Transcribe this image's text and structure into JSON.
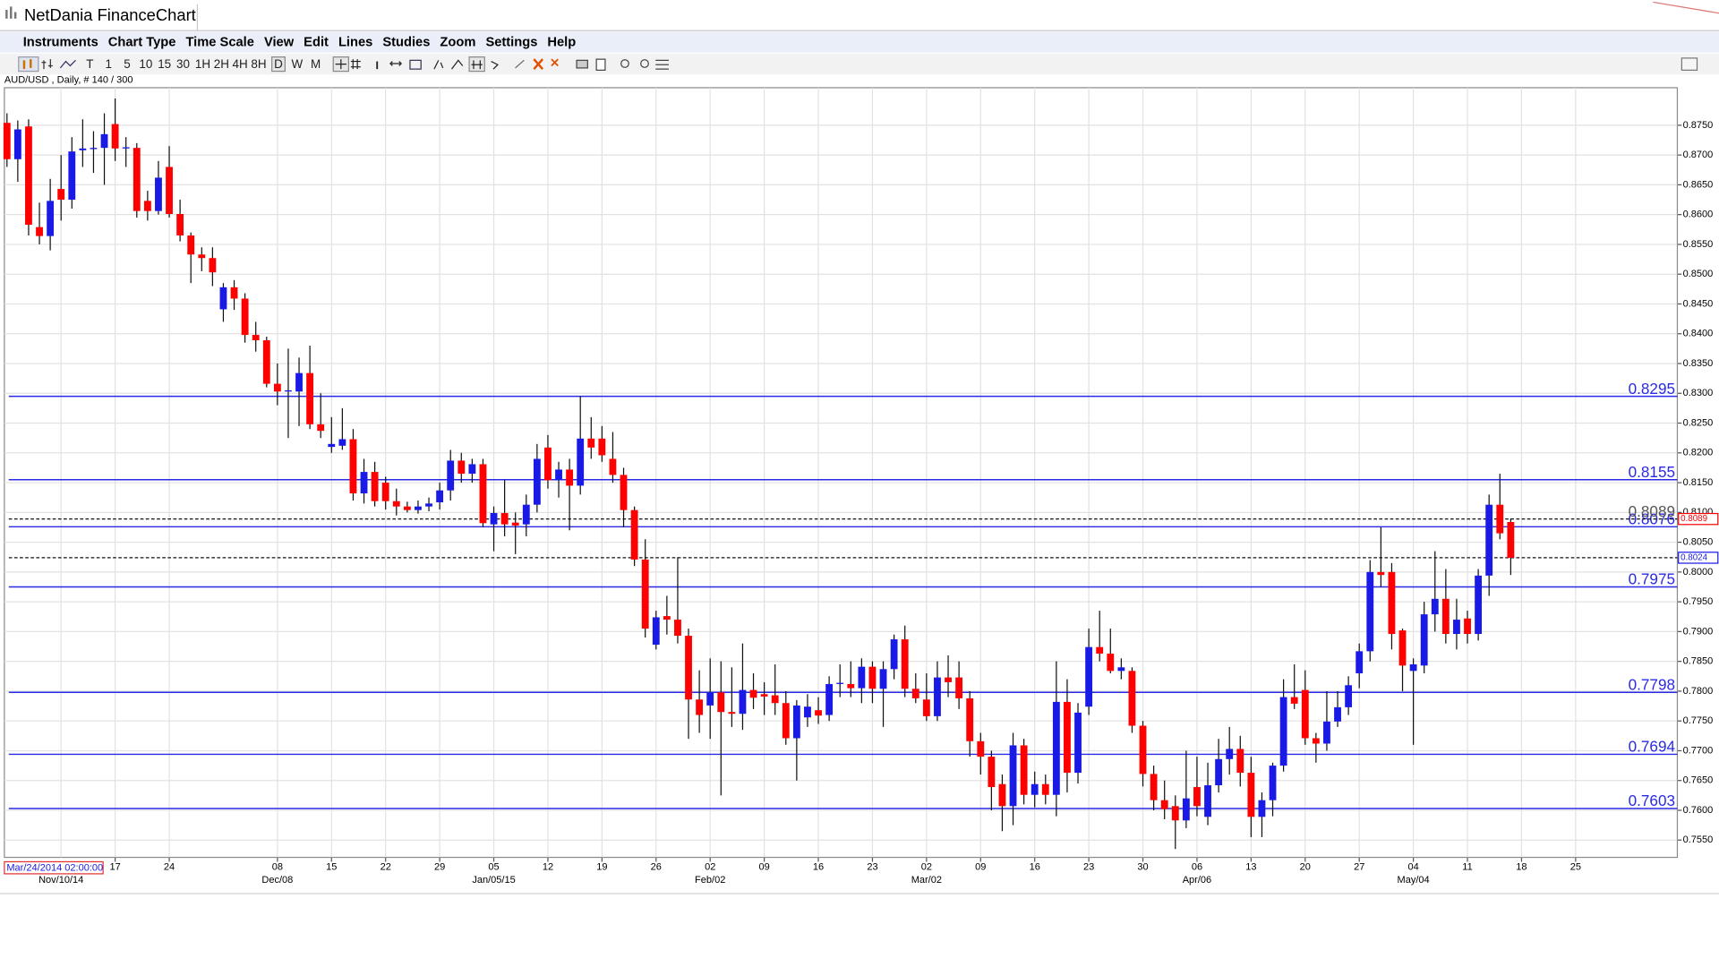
{
  "window": {
    "title": "NetDania FinanceChart"
  },
  "menu": [
    "Instruments",
    "Chart Type",
    "Time Scale",
    "View",
    "Edit",
    "Lines",
    "Studies",
    "Zoom",
    "Settings",
    "Help"
  ],
  "toolbar": [
    "T",
    "1",
    "5",
    "10",
    "15",
    "30",
    "1H",
    "2H",
    "4H",
    "8H",
    "D",
    "W",
    "M"
  ],
  "chart_data": {
    "type": "candlestick",
    "subtitle": "AUD/USD , Daily, # 140 / 300",
    "cursor_date": "Mar/24/2014 02:00:00",
    "x_weeks": [
      null,
      "17",
      "24",
      null,
      "08",
      "15",
      "22",
      "29",
      "05",
      "12",
      "19",
      "26",
      "02",
      "09",
      "16",
      "23",
      "02",
      "09",
      "16",
      "23",
      "30",
      "06",
      "13",
      "20",
      "27",
      "04",
      "11",
      "18",
      "25"
    ],
    "x_months": [
      "Nov/10/14",
      null,
      null,
      null,
      "Dec/08",
      null,
      null,
      null,
      "Jan/05/15",
      null,
      null,
      null,
      "Feb/02",
      null,
      null,
      null,
      "Mar/02",
      null,
      null,
      null,
      null,
      "Apr/06",
      null,
      null,
      null,
      "May/04",
      null,
      null,
      null
    ],
    "up_color": "#1a1ae6",
    "down_color": "#ff0000",
    "ohlc": [
      [
        0.8754,
        0.877,
        0.868,
        0.8693
      ],
      [
        0.8693,
        0.8758,
        0.8655,
        0.8743
      ],
      [
        0.8748,
        0.876,
        0.8565,
        0.8583
      ],
      [
        0.8579,
        0.862,
        0.855,
        0.8564
      ],
      [
        0.8564,
        0.866,
        0.854,
        0.8623
      ],
      [
        0.8643,
        0.87,
        0.859,
        0.8625
      ],
      [
        0.8625,
        0.873,
        0.861,
        0.8706
      ],
      [
        0.8708,
        0.876,
        0.868,
        0.8711
      ],
      [
        0.871,
        0.874,
        0.867,
        0.8712
      ],
      [
        0.8712,
        0.877,
        0.865,
        0.8735
      ],
      [
        0.8752,
        0.8795,
        0.869,
        0.8711
      ],
      [
        0.8711,
        0.873,
        0.868,
        0.8713
      ],
      [
        0.8712,
        0.872,
        0.8595,
        0.8606
      ],
      [
        0.8623,
        0.864,
        0.859,
        0.8606
      ],
      [
        0.8606,
        0.869,
        0.86,
        0.8662
      ],
      [
        0.868,
        0.8715,
        0.8595,
        0.8601
      ],
      [
        0.8601,
        0.8625,
        0.8555,
        0.8565
      ],
      [
        0.8565,
        0.857,
        0.8485,
        0.8533
      ],
      [
        0.8533,
        0.8545,
        0.8505,
        0.8527
      ],
      [
        0.8527,
        0.8545,
        0.848,
        0.8503
      ],
      [
        0.8441,
        0.8485,
        0.842,
        0.8478
      ],
      [
        0.8478,
        0.849,
        0.844,
        0.8459
      ],
      [
        0.8459,
        0.8468,
        0.8385,
        0.8398
      ],
      [
        0.8398,
        0.842,
        0.837,
        0.8389
      ],
      [
        0.8389,
        0.8395,
        0.831,
        0.8316
      ],
      [
        0.8316,
        0.835,
        0.828,
        0.8303
      ],
      [
        0.8303,
        0.8375,
        0.8225,
        0.8305
      ],
      [
        0.8303,
        0.836,
        0.8245,
        0.8334
      ],
      [
        0.8334,
        0.838,
        0.824,
        0.8248
      ],
      [
        0.8248,
        0.83,
        0.8225,
        0.8237
      ],
      [
        0.821,
        0.826,
        0.82,
        0.8215
      ],
      [
        0.8212,
        0.8275,
        0.8205,
        0.8223
      ],
      [
        0.8223,
        0.824,
        0.812,
        0.8132
      ],
      [
        0.8132,
        0.819,
        0.8115,
        0.8168
      ],
      [
        0.8168,
        0.8185,
        0.811,
        0.8119
      ],
      [
        0.815,
        0.816,
        0.8105,
        0.8119
      ],
      [
        0.8119,
        0.814,
        0.8095,
        0.811
      ],
      [
        0.811,
        0.8118,
        0.81,
        0.8104
      ],
      [
        0.8104,
        0.812,
        0.8098,
        0.811
      ],
      [
        0.811,
        0.8125,
        0.8102,
        0.8115
      ],
      [
        0.8117,
        0.815,
        0.8105,
        0.8137
      ],
      [
        0.8137,
        0.8205,
        0.812,
        0.8187
      ],
      [
        0.8187,
        0.82,
        0.815,
        0.8165
      ],
      [
        0.8165,
        0.819,
        0.815,
        0.8181
      ],
      [
        0.8181,
        0.819,
        0.8075,
        0.8082
      ],
      [
        0.808,
        0.811,
        0.8035,
        0.8099
      ],
      [
        0.8099,
        0.8155,
        0.806,
        0.808
      ],
      [
        0.8083,
        0.81,
        0.803,
        0.8078
      ],
      [
        0.808,
        0.813,
        0.806,
        0.8113
      ],
      [
        0.8113,
        0.8215,
        0.81,
        0.819
      ],
      [
        0.8209,
        0.823,
        0.814,
        0.8154
      ],
      [
        0.8154,
        0.8185,
        0.8125,
        0.8172
      ],
      [
        0.8172,
        0.819,
        0.807,
        0.8145
      ],
      [
        0.8145,
        0.8295,
        0.813,
        0.8224
      ],
      [
        0.8224,
        0.826,
        0.819,
        0.8209
      ],
      [
        0.8224,
        0.8245,
        0.8185,
        0.8196
      ],
      [
        0.819,
        0.8235,
        0.815,
        0.8163
      ],
      [
        0.8163,
        0.8175,
        0.8075,
        0.8104
      ],
      [
        0.8104,
        0.811,
        0.801,
        0.8021
      ],
      [
        0.8021,
        0.8055,
        0.789,
        0.7905
      ],
      [
        0.7878,
        0.7935,
        0.787,
        0.7924
      ],
      [
        0.7926,
        0.796,
        0.7895,
        0.792
      ],
      [
        0.792,
        0.8025,
        0.788,
        0.7893
      ],
      [
        0.7893,
        0.7905,
        0.772,
        0.7786
      ],
      [
        0.7786,
        0.7835,
        0.773,
        0.776
      ],
      [
        0.7776,
        0.7855,
        0.772,
        0.7798
      ],
      [
        0.7798,
        0.785,
        0.7625,
        0.7765
      ],
      [
        0.7765,
        0.784,
        0.774,
        0.7762
      ],
      [
        0.7762,
        0.788,
        0.7735,
        0.7802
      ],
      [
        0.7802,
        0.783,
        0.777,
        0.7789
      ],
      [
        0.7795,
        0.7815,
        0.776,
        0.7791
      ],
      [
        0.7793,
        0.7845,
        0.776,
        0.778
      ],
      [
        0.778,
        0.78,
        0.771,
        0.7721
      ],
      [
        0.7721,
        0.7785,
        0.765,
        0.7776
      ],
      [
        0.7756,
        0.7795,
        0.774,
        0.7774
      ],
      [
        0.7768,
        0.779,
        0.7745,
        0.7759
      ],
      [
        0.776,
        0.7825,
        0.775,
        0.7812
      ],
      [
        0.7812,
        0.7845,
        0.779,
        0.7814
      ],
      [
        0.7812,
        0.785,
        0.779,
        0.7805
      ],
      [
        0.7805,
        0.7855,
        0.778,
        0.7841
      ],
      [
        0.7841,
        0.785,
        0.778,
        0.7804
      ],
      [
        0.7804,
        0.785,
        0.774,
        0.7837
      ],
      [
        0.7837,
        0.7895,
        0.782,
        0.7887
      ],
      [
        0.7887,
        0.791,
        0.779,
        0.7804
      ],
      [
        0.7804,
        0.783,
        0.778,
        0.7788
      ],
      [
        0.7786,
        0.783,
        0.775,
        0.7758
      ],
      [
        0.7758,
        0.785,
        0.775,
        0.7823
      ],
      [
        0.7823,
        0.786,
        0.779,
        0.7815
      ],
      [
        0.7823,
        0.785,
        0.777,
        0.7788
      ],
      [
        0.7788,
        0.78,
        0.769,
        0.7716
      ],
      [
        0.7716,
        0.773,
        0.766,
        0.769
      ],
      [
        0.769,
        0.77,
        0.76,
        0.7639
      ],
      [
        0.7644,
        0.766,
        0.7565,
        0.7607
      ],
      [
        0.7607,
        0.773,
        0.7575,
        0.7709
      ],
      [
        0.7709,
        0.772,
        0.761,
        0.7626
      ],
      [
        0.7626,
        0.7665,
        0.7605,
        0.7644
      ],
      [
        0.7644,
        0.766,
        0.761,
        0.7626
      ],
      [
        0.7626,
        0.785,
        0.759,
        0.7782
      ],
      [
        0.7782,
        0.782,
        0.763,
        0.7663
      ],
      [
        0.7663,
        0.778,
        0.7645,
        0.7764
      ],
      [
        0.7774,
        0.7905,
        0.776,
        0.7874
      ],
      [
        0.7874,
        0.7935,
        0.785,
        0.7863
      ],
      [
        0.7863,
        0.7905,
        0.783,
        0.7834
      ],
      [
        0.7834,
        0.7855,
        0.782,
        0.784
      ],
      [
        0.7834,
        0.784,
        0.773,
        0.7742
      ],
      [
        0.7742,
        0.775,
        0.764,
        0.7661
      ],
      [
        0.7661,
        0.7675,
        0.76,
        0.7617
      ],
      [
        0.7617,
        0.765,
        0.7585,
        0.7602
      ],
      [
        0.7607,
        0.7625,
        0.7535,
        0.7583
      ],
      [
        0.7583,
        0.77,
        0.757,
        0.762
      ],
      [
        0.7639,
        0.769,
        0.759,
        0.7607
      ],
      [
        0.7589,
        0.768,
        0.7575,
        0.7642
      ],
      [
        0.7642,
        0.772,
        0.763,
        0.7686
      ],
      [
        0.7686,
        0.774,
        0.766,
        0.7703
      ],
      [
        0.7703,
        0.7725,
        0.764,
        0.7663
      ],
      [
        0.7663,
        0.769,
        0.7555,
        0.7589
      ],
      [
        0.7589,
        0.763,
        0.7555,
        0.7617
      ],
      [
        0.7617,
        0.768,
        0.759,
        0.7675
      ],
      [
        0.7675,
        0.782,
        0.7665,
        0.779
      ],
      [
        0.779,
        0.7845,
        0.777,
        0.7779
      ],
      [
        0.7802,
        0.7835,
        0.771,
        0.7721
      ],
      [
        0.7721,
        0.773,
        0.768,
        0.7712
      ],
      [
        0.7712,
        0.78,
        0.77,
        0.7749
      ],
      [
        0.7749,
        0.78,
        0.774,
        0.7773
      ],
      [
        0.7773,
        0.7825,
        0.776,
        0.781
      ],
      [
        0.783,
        0.788,
        0.7805,
        0.7867
      ],
      [
        0.7867,
        0.802,
        0.785,
        0.8
      ],
      [
        0.8,
        0.8075,
        0.7975,
        0.7995
      ],
      [
        0.8,
        0.8015,
        0.787,
        0.7896
      ],
      [
        0.7902,
        0.7905,
        0.78,
        0.7843
      ],
      [
        0.7834,
        0.7855,
        0.771,
        0.7845
      ],
      [
        0.7843,
        0.795,
        0.783,
        0.7929
      ],
      [
        0.7929,
        0.8035,
        0.79,
        0.7955
      ],
      [
        0.7955,
        0.8005,
        0.788,
        0.7896
      ],
      [
        0.7896,
        0.7955,
        0.787,
        0.792
      ],
      [
        0.7922,
        0.7935,
        0.788,
        0.7896
      ],
      [
        0.7896,
        0.8005,
        0.7885,
        0.7994
      ],
      [
        0.7994,
        0.813,
        0.796,
        0.8113
      ],
      [
        0.8113,
        0.8165,
        0.8055,
        0.8065
      ],
      [
        0.8084,
        0.809,
        0.7995,
        0.8024
      ]
    ],
    "levels": [
      0.8295,
      0.8155,
      0.8076,
      0.7975,
      0.7798,
      0.7694,
      0.7603
    ],
    "level_color": "#2a2ae6",
    "price_lines": [
      {
        "value": 0.8089,
        "color": "#ff0000"
      },
      {
        "value": 0.8024,
        "color": "#1a1ae6"
      }
    ],
    "ylim": [
      0.7521,
      0.8813
    ],
    "yticks": [
      {
        "value": 0.755,
        "label": "0.7550"
      },
      {
        "value": 0.76,
        "label": "0.7600"
      },
      {
        "value": 0.765,
        "label": "0.7650"
      },
      {
        "value": 0.77,
        "label": "0.7700"
      },
      {
        "value": 0.775,
        "label": "0.7750"
      },
      {
        "value": 0.78,
        "label": "0.7800"
      },
      {
        "value": 0.785,
        "label": "0.7850"
      },
      {
        "value": 0.79,
        "label": "0.7900"
      },
      {
        "value": 0.795,
        "label": "0.7950"
      },
      {
        "value": 0.8,
        "label": "0.8000"
      },
      {
        "value": 0.805,
        "label": "0.8050"
      },
      {
        "value": 0.81,
        "label": "0.8100"
      },
      {
        "value": 0.815,
        "label": "0.8150"
      },
      {
        "value": 0.82,
        "label": "0.8200"
      },
      {
        "value": 0.825,
        "label": "0.8250"
      },
      {
        "value": 0.83,
        "label": "0.8300"
      },
      {
        "value": 0.835,
        "label": "0.8350"
      },
      {
        "value": 0.84,
        "label": "0.8400"
      },
      {
        "value": 0.845,
        "label": "0.8450"
      },
      {
        "value": 0.85,
        "label": "0.8500"
      },
      {
        "value": 0.855,
        "label": "0.8550"
      },
      {
        "value": 0.86,
        "label": "0.8600"
      },
      {
        "value": 0.865,
        "label": "0.8650"
      },
      {
        "value": 0.87,
        "label": "0.8700"
      },
      {
        "value": 0.875,
        "label": "0.8750"
      }
    ],
    "grid": true
  }
}
